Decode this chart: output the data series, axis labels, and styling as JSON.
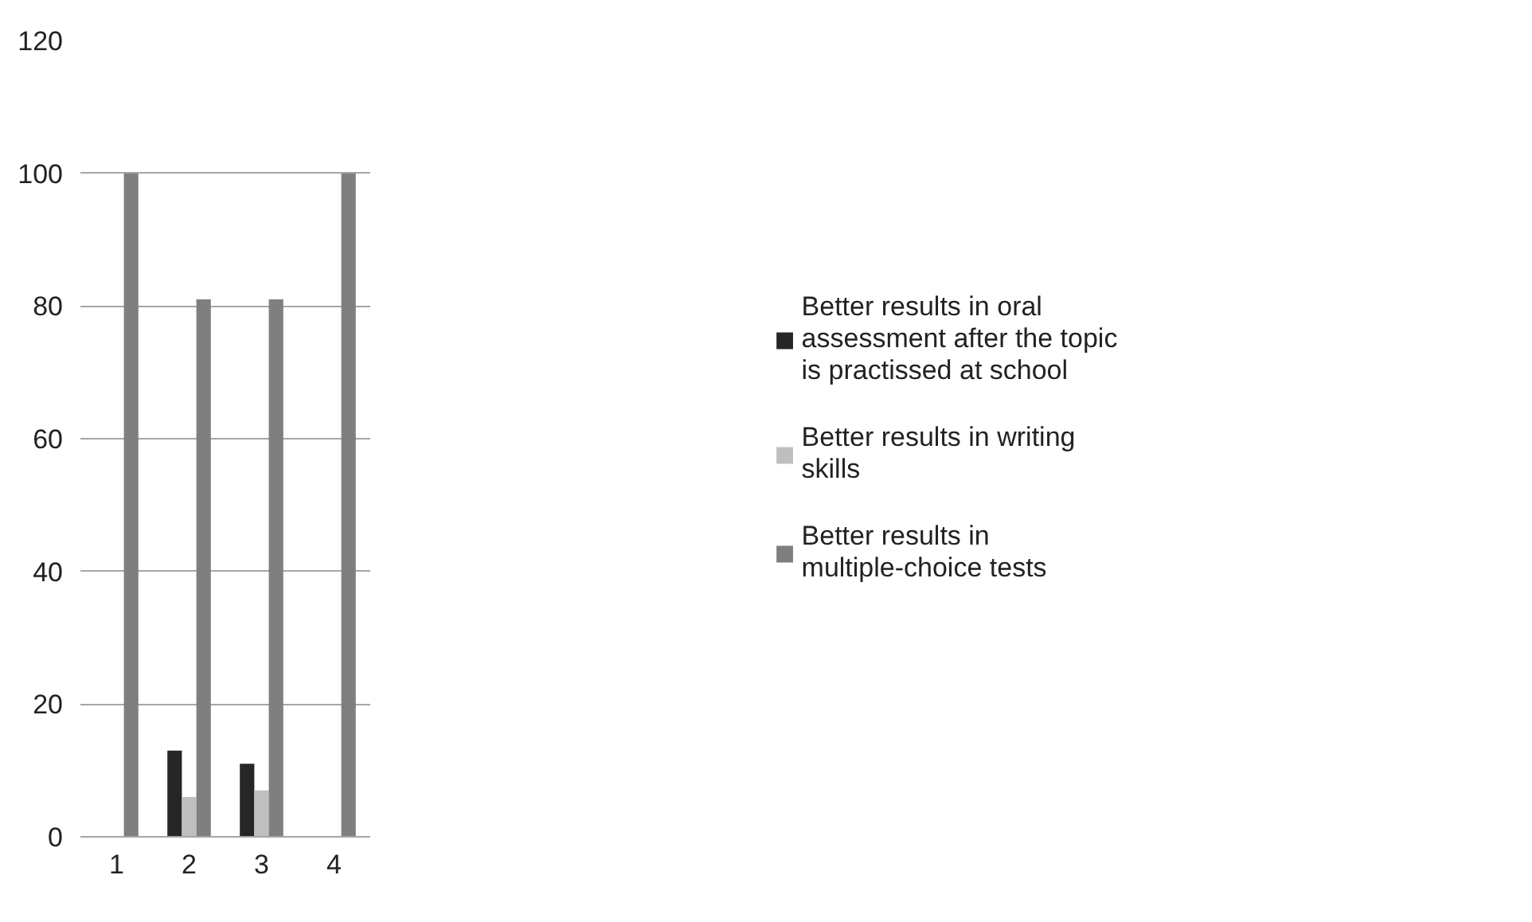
{
  "chart_data": {
    "type": "bar",
    "categories": [
      "1",
      "2",
      "3",
      "4"
    ],
    "series": [
      {
        "name": "Better results in oral assessment after the topic is practissed at school",
        "color": "#262626",
        "values": [
          0,
          13,
          11,
          0
        ]
      },
      {
        "name": "Better results in writing skills",
        "color": "#bfbfbf",
        "values": [
          0,
          6,
          7,
          0
        ]
      },
      {
        "name": "Better results in multiple-choice tests",
        "color": "#7f7f7f",
        "values": [
          100,
          81,
          81,
          100
        ]
      }
    ],
    "ylim": [
      0,
      120
    ],
    "yticks": [
      0,
      20,
      40,
      60,
      80,
      100,
      120
    ],
    "grid": "y",
    "legend": "right"
  }
}
